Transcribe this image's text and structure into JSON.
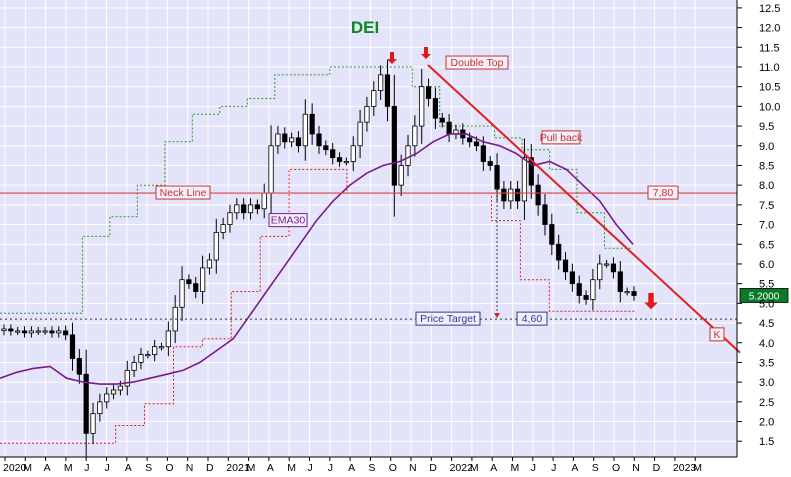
{
  "chart_data": {
    "type": "candlestick",
    "title": "DEI",
    "y_ticks": [
      1.5,
      2.0,
      2.5,
      3.0,
      3.5,
      4.0,
      4.5,
      5.0,
      5.5,
      6.0,
      6.5,
      7.0,
      7.5,
      8.0,
      8.5,
      9.0,
      9.5,
      10.0,
      10.5,
      11.0,
      11.5,
      12.0,
      12.5
    ],
    "ylim": [
      1.1,
      12.7
    ],
    "x_ticks": [
      "2020",
      "M",
      "A",
      "M",
      "J",
      "J",
      "A",
      "S",
      "O",
      "N",
      "D",
      "2021",
      "M",
      "A",
      "M",
      "J",
      "J",
      "A",
      "S",
      "O",
      "N",
      "D",
      "2022",
      "M",
      "A",
      "M",
      "J",
      "J",
      "A",
      "S",
      "O",
      "N",
      "D",
      "2023",
      "M"
    ],
    "last_price": "5.2000",
    "price_series": [
      4.35,
      4.3,
      4.3,
      4.25,
      4.3,
      4.3,
      4.3,
      4.25,
      4.3,
      4.2,
      3.6,
      3.2,
      1.7,
      2.2,
      2.5,
      2.7,
      2.8,
      2.9,
      3.3,
      3.5,
      3.7,
      3.7,
      3.9,
      3.9,
      4.3,
      4.9,
      5.6,
      5.5,
      5.3,
      5.9,
      6.1,
      6.8,
      7.0,
      7.3,
      7.5,
      7.3,
      7.5,
      7.4,
      7.8,
      9.0,
      9.3,
      9.1,
      9.2,
      9.0,
      9.8,
      9.3,
      9.0,
      8.9,
      8.7,
      8.6,
      8.6,
      9.0,
      9.6,
      10.0,
      10.4,
      10.8,
      10.0,
      8.0,
      8.5,
      9.0,
      9.5,
      10.5,
      10.2,
      9.7,
      9.6,
      9.3,
      9.4,
      9.2,
      9.1,
      9.0,
      8.6,
      8.5,
      7.9,
      7.6,
      7.9,
      7.6,
      8.7,
      8.0,
      7.5,
      7.0,
      6.5,
      6.1,
      5.8,
      5.5,
      5.2,
      5.1,
      5.6,
      6.0,
      6.0,
      5.8,
      5.3,
      5.3,
      5.2
    ],
    "ema_label": "EMA30",
    "ema30": [
      3.1,
      3.25,
      3.35,
      3.4,
      3.1,
      3.0,
      2.95,
      2.95,
      3.0,
      3.1,
      3.2,
      3.3,
      3.5,
      3.8,
      4.1,
      4.7,
      5.3,
      5.9,
      6.5,
      7.1,
      7.6,
      8.0,
      8.3,
      8.5,
      8.6,
      8.8,
      9.1,
      9.3,
      9.3,
      9.1,
      9.0,
      8.8,
      8.5,
      8.6,
      8.4,
      8.0,
      7.6,
      7.0,
      6.5
    ],
    "channel_upper": [
      4.75,
      4.75,
      4.75,
      6.7,
      7.2,
      8.0,
      9.1,
      9.8,
      10.0,
      10.2,
      10.8,
      10.8,
      11.0,
      11.0,
      11.0,
      10.5,
      9.5,
      9.5,
      9.2,
      8.9,
      8.4,
      7.3,
      6.4
    ],
    "channel_lower": [
      1.45,
      1.45,
      1.45,
      1.45,
      1.9,
      2.45,
      3.9,
      4.1,
      5.3,
      6.7,
      8.4,
      8.4,
      7.8,
      7.8,
      7.8,
      7.8,
      7.8,
      7.1,
      5.6,
      4.8,
      4.8,
      4.8
    ],
    "annotations": [
      {
        "text": "Double Top",
        "y": 11.1
      },
      {
        "text": "Pull back",
        "y": 9.2
      },
      {
        "text": "Neck Line",
        "y": 7.8
      },
      {
        "text": "7,80",
        "y": 7.8
      },
      {
        "text": "EMA30",
        "y": 7.1
      },
      {
        "text": "Price Target",
        "y": 4.6
      },
      {
        "text": "4,60",
        "y": 4.6
      },
      {
        "text": "K",
        "y": 4.2
      }
    ],
    "neck_line": 7.8,
    "price_target": 4.6,
    "legend": "none",
    "grid": true
  }
}
